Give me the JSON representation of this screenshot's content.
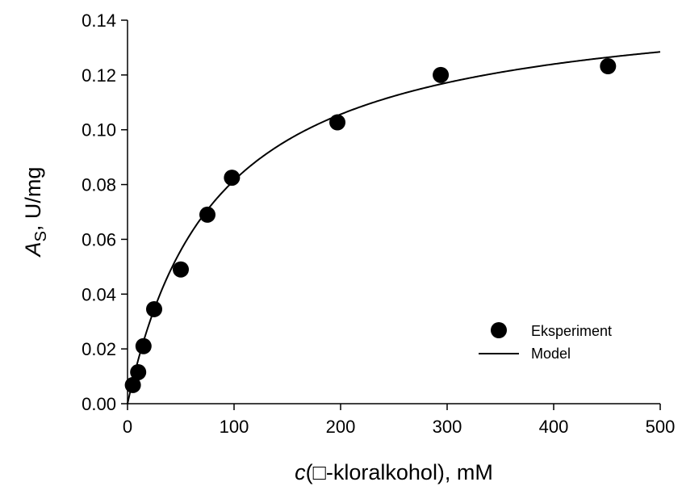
{
  "chart_data": {
    "type": "scatter",
    "xlabel_italic": "c",
    "xlabel_rest": "(□-kloralkohol), mM",
    "ylabel_italic": "A",
    "ylabel_sub": "S",
    "ylabel_rest": ", U/mg",
    "xlim": [
      0,
      500
    ],
    "ylim": [
      0,
      0.14
    ],
    "x_ticks": [
      0,
      100,
      200,
      300,
      400,
      500
    ],
    "x_tick_labels": [
      "0",
      "100",
      "200",
      "300",
      "400",
      "500"
    ],
    "y_ticks": [
      0,
      0.02,
      0.04,
      0.06,
      0.08,
      0.1,
      0.12,
      0.14
    ],
    "y_tick_labels": [
      "0.00",
      "0.02",
      "0.04",
      "0.06",
      "0.08",
      "0.10",
      "0.12",
      "0.14"
    ],
    "grid": false,
    "legend_position": "lower-right",
    "series": [
      {
        "name": "Eksperiment",
        "kind": "markers",
        "x": [
          5,
          10,
          15,
          25,
          50,
          75,
          98,
          197,
          294,
          451
        ],
        "y": [
          0.0068,
          0.0115,
          0.021,
          0.0345,
          0.049,
          0.069,
          0.0825,
          0.1027,
          0.12,
          0.1232
        ]
      },
      {
        "name": "Model",
        "kind": "line",
        "model": "michaelis-menten",
        "vmax": 0.15,
        "km": 84,
        "x_range": [
          0,
          500
        ]
      }
    ]
  }
}
